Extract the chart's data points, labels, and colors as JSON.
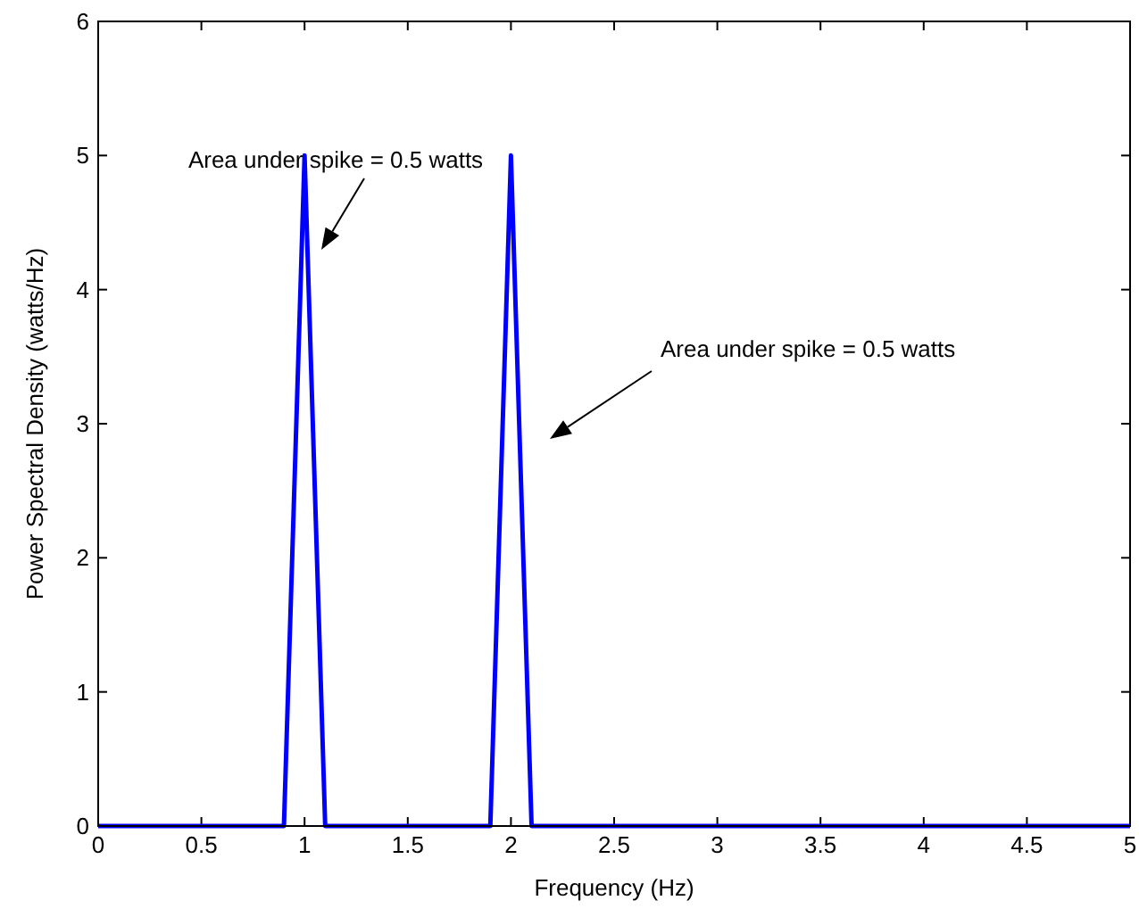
{
  "chart_data": {
    "type": "line",
    "xlabel": "Frequency (Hz)",
    "ylabel": "Power Spectral Density (watts/Hz)",
    "x": [
      0,
      0.9,
      1,
      1.1,
      1.9,
      2,
      2.1,
      5
    ],
    "series": [
      {
        "color": "#0000ff",
        "values": [
          0,
          0,
          5,
          0,
          0,
          5,
          0,
          0
        ]
      }
    ],
    "xlim": [
      0,
      5
    ],
    "xticks": [
      0,
      0.5,
      1,
      1.5,
      2,
      2.5,
      3,
      3.5,
      4,
      4.5,
      5
    ],
    "ylim": [
      0,
      6
    ],
    "yticks": [
      0,
      1,
      2,
      3,
      4,
      5,
      6
    ],
    "grid": false,
    "marker": "none",
    "line_style": "solid",
    "annotations": [
      "Area under spike = 0.5 watts",
      "Area under spike = 0.5 watts"
    ]
  }
}
